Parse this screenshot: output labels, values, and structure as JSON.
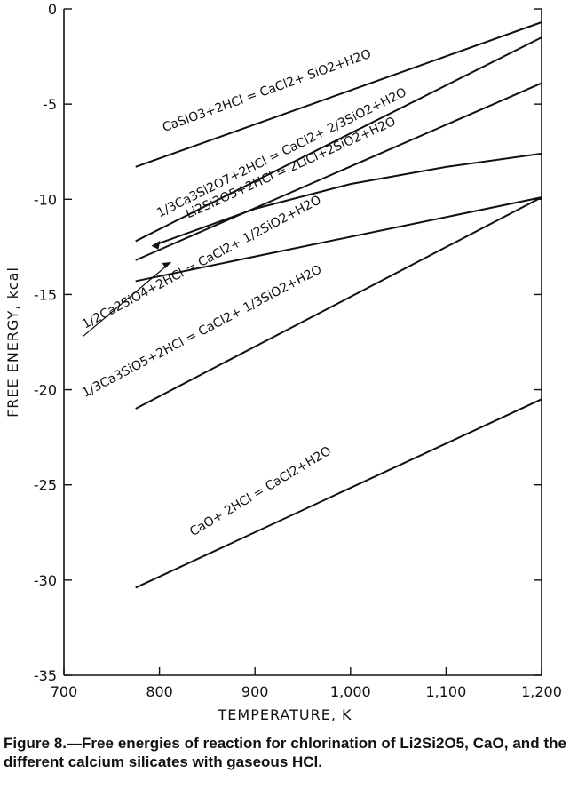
{
  "chart_data": {
    "type": "line",
    "xlabel": "TEMPERATURE, K",
    "ylabel": "FREE ENERGY, kcal",
    "xlim": [
      700,
      1200
    ],
    "ylim": [
      -35,
      0
    ],
    "x_ticks": [
      700,
      800,
      900,
      1000,
      1100,
      1200
    ],
    "x_tick_labels": [
      "700",
      "800",
      "900",
      "1,000",
      "1,100",
      "1,200"
    ],
    "y_ticks": [
      0,
      -5,
      -10,
      -15,
      -20,
      -25,
      -30,
      -35
    ],
    "y_tick_labels": [
      "0",
      "-5",
      "-10",
      "-15",
      "-20",
      "-25",
      "-30",
      "-35"
    ],
    "grid": false,
    "series": [
      {
        "id": "casio3",
        "name": "CaSiO3+2HCl = CaCl2+ SiO2+H2O",
        "x": [
          775,
          1200
        ],
        "y": [
          -8.3,
          -0.7
        ]
      },
      {
        "id": "ca3si2o7",
        "name": "1/3Ca3Si2O7+2HCl = CaCl2+ 2/3SiO2+H2O",
        "x": [
          775,
          1200
        ],
        "y": [
          -12.2,
          -1.5
        ]
      },
      {
        "id": "li2si2o5",
        "name": "Li2Si2O5+2HCl = 2LiCl+2SiO2+H2O",
        "x": [
          795,
          900,
          1000,
          1100,
          1200
        ],
        "y": [
          -12.4,
          -10.5,
          -9.2,
          -8.3,
          -7.6
        ]
      },
      {
        "id": "ca3si2o7_b",
        "name": "",
        "x": [
          775,
          1200
        ],
        "y": [
          -13.2,
          -3.9
        ]
      },
      {
        "id": "ca2sio4",
        "name": "1/2Ca2SiO4+2HCl = CaCl2+ 1/2SiO2+H2O",
        "x": [
          775,
          1200
        ],
        "y": [
          -14.3,
          -9.9
        ]
      },
      {
        "id": "ca3sio5",
        "name": "1/3Ca3SiO5+2HCl = CaCl2+ 1/3SiO2+H2O",
        "x": [
          775,
          1200
        ],
        "y": [
          -21.0,
          -9.9
        ]
      },
      {
        "id": "cao",
        "name": "CaO+ 2HCl = CaCl2+H2O",
        "x": [
          775,
          1200
        ],
        "y": [
          -30.4,
          -20.5
        ]
      }
    ],
    "labels": {
      "casio3": "CaSiO3+2HCl = CaCl2+ SiO2+H2O",
      "ca3si2o7": "1/3Ca3Si2O7+2HCl = CaCl2+ 2/3SiO2+H2O",
      "li2si2o5": "Li2Si2O5+2HCl = 2LiCl+2SiO2+H2O",
      "ca2sio4": "1/2Ca2SiO4+2HCl = CaCl2+ 1/2SiO2+H2O",
      "ca3sio5": "1/3Ca3SiO5+2HCl = CaCl2+ 1/3SiO2+H2O",
      "cao": "CaO+ 2HCl = CaCl2+H2O"
    }
  },
  "caption": "Figure 8.—Free energies of reaction for chlorination of Li2Si2O5, CaO, and the different calcium silicates with gaseous HCl."
}
